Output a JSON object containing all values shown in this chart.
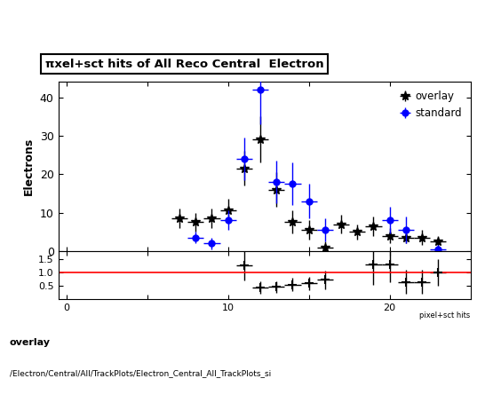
{
  "title": "πxel+sct hits of All Reco Central  Electron",
  "ylabel_main": "Electrons",
  "footer_line1": "overlay",
  "footer_line2": "/Electron/Central/All/TrackPlots/Electron_Central_All_TrackPlots_si",
  "xlabel_small": "pixel+sct hits",
  "overlay_x": [
    7,
    8,
    9,
    10,
    11,
    12,
    13,
    14,
    15,
    16,
    17,
    18,
    19,
    20,
    21,
    22,
    23
  ],
  "overlay_y": [
    8.5,
    7.5,
    8.5,
    10.5,
    21.5,
    29.0,
    16.0,
    7.5,
    5.5,
    1.0,
    7.0,
    5.0,
    6.5,
    4.0,
    3.5,
    3.5,
    2.5
  ],
  "overlay_xerr": [
    0.5,
    0.5,
    0.5,
    0.5,
    0.5,
    0.5,
    0.5,
    0.5,
    0.5,
    0.5,
    0.5,
    0.5,
    0.5,
    0.5,
    0.5,
    0.5,
    0.5
  ],
  "overlay_yerr": [
    2.5,
    2.5,
    2.5,
    3.0,
    4.5,
    6.0,
    4.5,
    3.0,
    2.5,
    1.5,
    2.5,
    2.0,
    2.5,
    2.0,
    1.5,
    2.0,
    1.5
  ],
  "standard_x": [
    8,
    9,
    10,
    11,
    12,
    13,
    14,
    15,
    16,
    20,
    21,
    23
  ],
  "standard_y": [
    3.5,
    2.0,
    8.0,
    24.0,
    42.0,
    18.0,
    17.5,
    13.0,
    5.5,
    8.0,
    5.5,
    0.5
  ],
  "standard_xerr": [
    0.5,
    0.5,
    0.5,
    0.5,
    0.5,
    0.5,
    0.5,
    0.5,
    0.5,
    0.5,
    0.5,
    0.5
  ],
  "standard_yerr": [
    1.5,
    1.5,
    2.5,
    5.5,
    9.0,
    5.5,
    5.5,
    4.5,
    3.0,
    3.5,
    3.5,
    1.0
  ],
  "ratio_x": [
    11,
    12,
    13,
    14,
    15,
    16,
    19,
    20,
    21,
    22,
    23
  ],
  "ratio_y": [
    1.25,
    0.44,
    0.46,
    0.55,
    0.6,
    0.73,
    1.3,
    1.3,
    0.65,
    0.65,
    1.0
  ],
  "ratio_xerr": [
    0.5,
    0.5,
    0.5,
    0.5,
    0.5,
    0.5,
    0.5,
    0.5,
    0.5,
    0.5,
    0.5
  ],
  "ratio_yerr": [
    0.55,
    0.22,
    0.22,
    0.25,
    0.25,
    0.35,
    0.75,
    0.65,
    0.45,
    0.45,
    0.5
  ],
  "overlay_color": "black",
  "standard_color": "blue",
  "ratio_line_color": "red",
  "main_ylim": [
    0,
    44
  ],
  "main_yticks": [
    0,
    10,
    20,
    30,
    40
  ],
  "ratio_ylim": [
    0,
    1.8
  ],
  "ratio_yticks": [
    0.5,
    1.0,
    1.5
  ],
  "xlim": [
    -0.5,
    25
  ],
  "xticks": [
    0,
    5,
    10,
    15,
    20
  ]
}
